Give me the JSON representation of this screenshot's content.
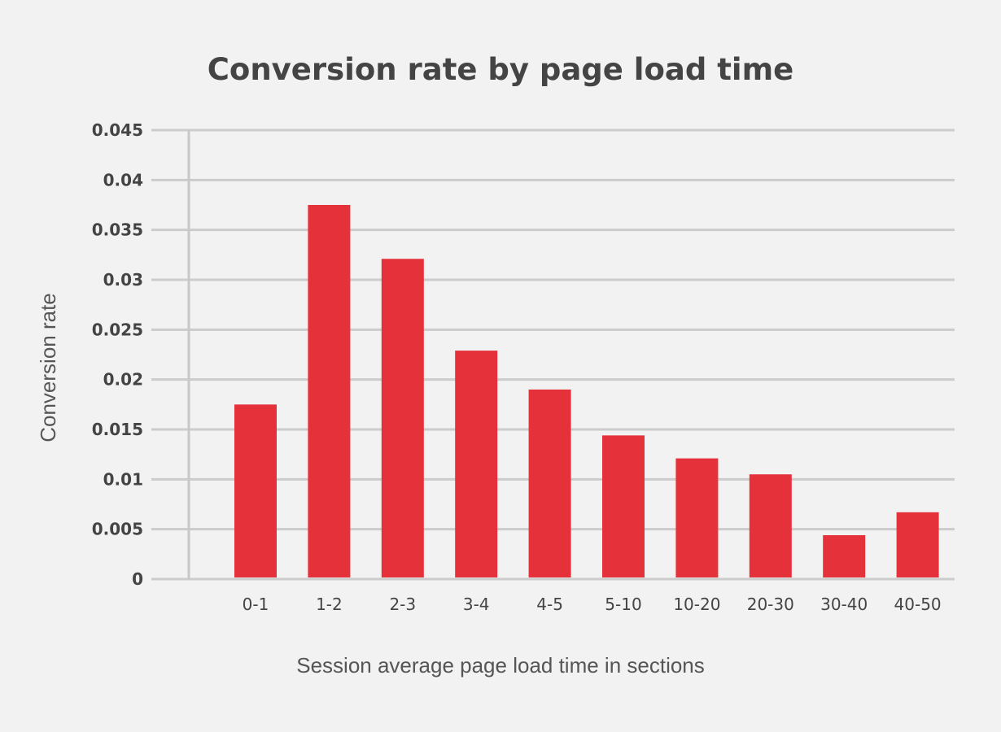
{
  "colors": {
    "background": "#f2f2f2",
    "bar": "#e5323a",
    "grid": "#cccccc",
    "axis": "#c8c8c8",
    "text": "#444444"
  },
  "chart_data": {
    "type": "bar",
    "title": "Conversion rate by page load time",
    "xlabel": "Session average page load time in sections",
    "ylabel": "Conversion rate",
    "categories": [
      "0-1",
      "1-2",
      "2-3",
      "3-4",
      "4-5",
      "5-10",
      "10-20",
      "20-30",
      "30-40",
      "40-50"
    ],
    "values": [
      0.0175,
      0.0375,
      0.0321,
      0.0229,
      0.019,
      0.0144,
      0.0121,
      0.0105,
      0.0044,
      0.0067
    ],
    "ylim": [
      0,
      0.045
    ],
    "yticks": [
      "0",
      "0.005",
      "0.01",
      "0.015",
      "0.02",
      "0.025",
      "0.03",
      "0.035",
      "0.04",
      "0.045"
    ],
    "grid": true,
    "legend": "none"
  }
}
